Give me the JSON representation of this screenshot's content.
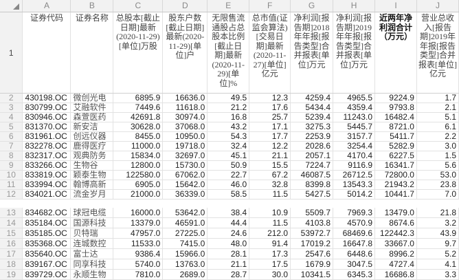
{
  "columns": [
    "A",
    "B",
    "C",
    "D",
    "E",
    "F",
    "G",
    "H",
    "I",
    "J"
  ],
  "headers": [
    "证券代码",
    "证券名称",
    "总股本[截止日期]最新(2020-11-29)[单位]万股",
    "股东户数[截止日期]最新(2020-11-29)[单位]户",
    "无限售流通股占总股本比例[截止日期]最新(2020-11-29)[单位]%",
    "总市值(证监会算法)[交易日期]最新(2020-11-27)[单位]亿元",
    "净利润[报告期]2018年年报[报告类型]合并报表[单位]万元",
    "净利润[报告期]2019年年报[报告类型]合并报表[单位]万元",
    "近两年净利润合计（万元）",
    "营业总收入[报告期]2019年年报[报告类型]合并报表[单位]亿元"
  ],
  "rows": [
    [
      "2",
      "430198.OC",
      "微创光电",
      "6895.9",
      "16636.0",
      "49.5",
      "12.3",
      "4259.4",
      "4965.5",
      "9224.9",
      "1.7"
    ],
    [
      "3",
      "830799.OC",
      "艾融软件",
      "7449.6",
      "11618.0",
      "21.2",
      "17.6",
      "5434.4",
      "4359.4",
      "9793.8",
      "2.1"
    ],
    [
      "4",
      "830946.OC",
      "森萱医药",
      "42691.8",
      "30974.0",
      "16.8",
      "25.7",
      "5239.4",
      "11243.0",
      "16482.4",
      "5.1"
    ],
    [
      "5",
      "831370.OC",
      "新安洁",
      "30628.0",
      "37068.0",
      "43.2",
      "17.1",
      "3275.3",
      "5445.7",
      "8721.0",
      "6.1"
    ],
    [
      "6",
      "831961.OC",
      "创远仪器",
      "8455.0",
      "10950.0",
      "54.3",
      "17.7",
      "2253.9",
      "3157.7",
      "5411.7",
      "2.2"
    ],
    [
      "7",
      "832278.OC",
      "鹿得医疗",
      "11000.0",
      "19718.0",
      "32.4",
      "12.2",
      "2028.6",
      "3254.4",
      "5282.9",
      "3.0"
    ],
    [
      "8",
      "832317.OC",
      "观典防务",
      "15834.0",
      "32697.0",
      "45.1",
      "21.1",
      "2057.1",
      "4170.4",
      "6227.5",
      "1.5"
    ],
    [
      "9",
      "833266.OC",
      "生物谷",
      "12800.0",
      "15730.0",
      "50.9",
      "15.5",
      "7224.7",
      "9116.9",
      "16341.7",
      "5.6"
    ],
    [
      "10",
      "833819.OC",
      "颖泰生物",
      "122580.0",
      "67062.0",
      "22.7",
      "67.2",
      "46087.5",
      "26712.5",
      "72800.0",
      "53.0"
    ],
    [
      "11",
      "833994.OC",
      "翰博高新",
      "6905.0",
      "15642.0",
      "46.0",
      "32.8",
      "8399.8",
      "13543.3",
      "21943.2",
      "23.8"
    ],
    [
      "12",
      "834021.OC",
      "流金岁月",
      "21000.0",
      "36339.0",
      "58.5",
      "11.5",
      "5427.5",
      "5014.2",
      "10441.7",
      "7.0"
    ]
  ],
  "rows2": [
    [
      "13",
      "834682.OC",
      "球冠电缆",
      "16000.0",
      "53642.0",
      "38.4",
      "10.9",
      "5509.7",
      "7969.3",
      "13479.0",
      "21.8"
    ],
    [
      "14",
      "835184.OC",
      "国源科技",
      "13379.0",
      "46591.0",
      "44.4",
      "11.5",
      "4103.8",
      "4570.9",
      "8674.6",
      "3.2"
    ],
    [
      "15",
      "835185.OC",
      "贝特瑞",
      "47957.0",
      "27225.0",
      "24.6",
      "212.0",
      "53972.7",
      "68469.6",
      "122442.3",
      "43.9"
    ],
    [
      "16",
      "835368.OC",
      "连城数控",
      "11533.0",
      "7415.0",
      "48.0",
      "91.4",
      "17019.2",
      "16647.8",
      "33667.0",
      "9.7"
    ],
    [
      "17",
      "835640.OC",
      "富士达",
      "9386.4",
      "15966.0",
      "28.1",
      "17.3",
      "2547.6",
      "6448.6",
      "8996.2",
      "5.2"
    ],
    [
      "18",
      "839167.OC",
      "同享科技",
      "5740.0",
      "13763.0",
      "21.1",
      "17.5",
      "1679.9",
      "3047.5",
      "4727.4",
      "4.1"
    ],
    [
      "19",
      "839729.OC",
      "永顺生物",
      "7810.0",
      "2689.0",
      "28.7",
      "30.0",
      "10341.5",
      "6345.3",
      "16686.8",
      "3.3"
    ]
  ],
  "header_row_number": "1"
}
